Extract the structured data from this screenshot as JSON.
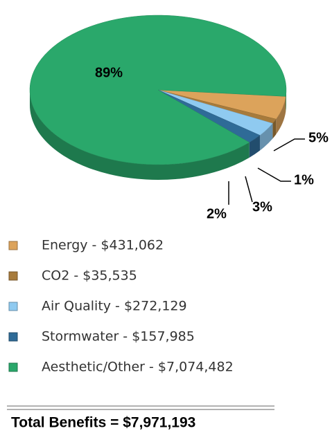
{
  "chart_data": {
    "type": "pie",
    "categories": [
      "Energy - $431,062",
      "CO2 - $35,535",
      "Air Quality - $272,129",
      "Stormwater - $157,985",
      "Aesthetic/Other - $7,074,482"
    ],
    "values": [
      5,
      1,
      3,
      2,
      89
    ],
    "value_labels": [
      "5%",
      "1%",
      "3%",
      "2%",
      "89%"
    ],
    "colors": [
      "#dca35b",
      "#a77b3c",
      "#8fcaf0",
      "#2f6b97",
      "#2aa86b"
    ],
    "annotation": "Total Benefits = $7,971,193"
  }
}
